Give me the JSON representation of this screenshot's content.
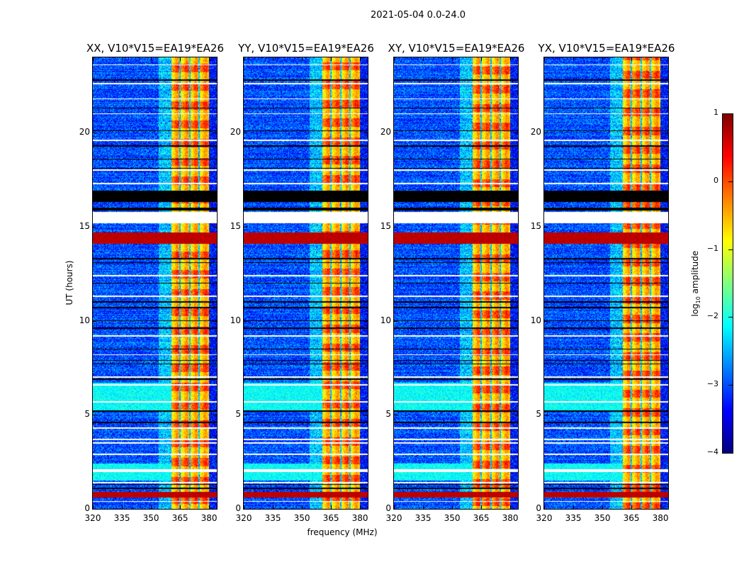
{
  "figure_title": "2021-05-04 0.0-24.0",
  "chart_data": {
    "type": "heatmap",
    "xlabel": "frequency (MHz)",
    "ylabel": "UT (hours)",
    "xlim": [
      320,
      384
    ],
    "ylim": [
      0,
      24
    ],
    "xticks": [
      320,
      335,
      350,
      365,
      380
    ],
    "yticks": [
      0,
      5,
      10,
      15,
      20
    ],
    "panels": [
      {
        "title": "XX, V10*V15=EA19*EA26",
        "seed": 11
      },
      {
        "title": "YY, V10*V15=EA19*EA26",
        "seed": 23
      },
      {
        "title": "XY, V10*V15=EA19*EA26",
        "seed": 37
      },
      {
        "title": "YX, V10*V15=EA19*EA26",
        "seed": 51
      }
    ],
    "colorbar": {
      "label_prefix": "log",
      "label_sub": "10",
      "label_suffix": " amplitude",
      "range": [
        -4,
        1
      ],
      "ticks": [
        "1",
        "0",
        "−1",
        "−2",
        "−3",
        "−4"
      ],
      "tick_values": [
        1,
        0,
        -1,
        -2,
        -3,
        -4
      ],
      "colormap": "jet"
    },
    "features": {
      "background_level": -3.0,
      "strong_band_mhz": [
        360.5,
        380
      ],
      "strong_band_level": -0.6,
      "band_dips_mhz": [
        365,
        370,
        375
      ],
      "red_spans_hours": [
        [
          14.1,
          14.7
        ],
        [
          0.6,
          0.9
        ]
      ],
      "cyan_spans_hours": [
        [
          5.2,
          6.7
        ],
        [
          1.5,
          2.4
        ]
      ],
      "white_flag_spans_hours": [
        [
          15.2,
          15.8
        ],
        [
          1.95,
          2.1
        ]
      ],
      "black_flag_spans_hours": [
        [
          16.3,
          16.9
        ],
        [
          15.85,
          16.0
        ]
      ],
      "white_flag_lines_hours": [
        23.6,
        22.6,
        21.8,
        21.0,
        19.6,
        18.0,
        17.3,
        12.4,
        11.3,
        9.2,
        8.2,
        7.0,
        6.6,
        5.7,
        4.3,
        3.7,
        3.5,
        2.9,
        1.4,
        0.4
      ],
      "black_flag_lines_hours": [
        22.8,
        21.3,
        20.1,
        19.3,
        18.6,
        18.1,
        13.3,
        13.1,
        12.0,
        11.0,
        10.7,
        10.0,
        9.6,
        8.5,
        7.9,
        7.7,
        6.9,
        5.2,
        4.6,
        1.3,
        1.1
      ]
    }
  }
}
